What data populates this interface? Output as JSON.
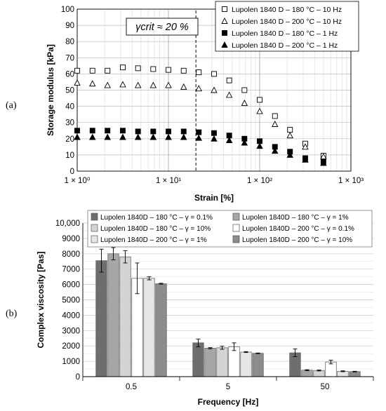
{
  "panel_labels": [
    "(a)",
    "(b)"
  ],
  "chart_data": [
    {
      "type": "scatter",
      "xscale": "log",
      "xlabel": "Strain [%]",
      "ylabel": "Storage modulus [kPa]",
      "xlim": [
        1,
        1000
      ],
      "ylim": [
        0,
        100
      ],
      "yticks": [
        0,
        10,
        20,
        30,
        40,
        50,
        60,
        70,
        80,
        90,
        100
      ],
      "xtick_labels": [
        "1 × 10⁰",
        "1 × 10¹",
        "1 × 10²",
        "1 × 10³"
      ],
      "grid": true,
      "legend": "top-right",
      "annotation": {
        "text": "γcrit ≈ 20 %",
        "x": 20
      },
      "x": [
        1,
        1.47,
        2.15,
        3.16,
        4.64,
        6.81,
        10,
        14.7,
        21.5,
        31.6,
        46.4,
        68.1,
        100,
        147,
        215,
        316,
        500
      ],
      "series": [
        {
          "name": "Lupolen 1840 D – 180 °C – 10 Hz",
          "marker": "square-open",
          "values": [
            62,
            62,
            62,
            64,
            63.5,
            63,
            62.5,
            62,
            61,
            60,
            56,
            50,
            44,
            34,
            25.5,
            17,
            9.5
          ]
        },
        {
          "name": "Lupolen 1840 D – 200 °C – 10 Hz",
          "marker": "triangle-open",
          "values": [
            54.5,
            54,
            53,
            53.5,
            53,
            53,
            53,
            52,
            51,
            50,
            47,
            42,
            37,
            29,
            22,
            15,
            9
          ]
        },
        {
          "name": "Lupolen 1840 D – 180 °C – 1 Hz",
          "marker": "square-filled",
          "values": [
            25,
            25,
            25,
            25,
            24.5,
            24.5,
            24.5,
            24.5,
            24,
            23.5,
            22,
            20,
            18.5,
            15,
            12,
            8,
            6
          ]
        },
        {
          "name": "Lupolen 1840 D – 200 °C – 1 Hz",
          "marker": "triangle-filled",
          "values": [
            21,
            21,
            21,
            21,
            21,
            21,
            21,
            21,
            20.5,
            20,
            19,
            17.5,
            15.5,
            12.5,
            10,
            7,
            5
          ]
        }
      ]
    },
    {
      "type": "bar",
      "xlabel": "Frequency [Hz]",
      "ylabel": "Complex viscosity  [Pas]",
      "categories": [
        "0.5",
        "5",
        "50"
      ],
      "ylim": [
        0,
        10000
      ],
      "yticks": [
        0,
        1000,
        2000,
        3000,
        4000,
        5000,
        6000,
        7000,
        8000,
        9000,
        10000
      ],
      "ytick_labels": [
        "0",
        "1000",
        "2000",
        "3000",
        "4000",
        "5000",
        "6000",
        "7000",
        "8000",
        "9000",
        "10,000"
      ],
      "grid": true,
      "legend": "top",
      "series": [
        {
          "name": "Lupolen 1840D – 180 °C – γ = 0.1%",
          "color": "#6e6e6e",
          "values": [
            7550,
            2200,
            1550
          ],
          "errors": [
            750,
            250,
            250
          ]
        },
        {
          "name": "Lupolen 1840D – 180 °C – γ = 1%",
          "color": "#a6a6a6",
          "values": [
            8000,
            1850,
            420
          ],
          "errors": [
            400,
            40,
            30
          ]
        },
        {
          "name": "Lupolen 1840D – 180 °C – γ = 10%",
          "color": "#d4d4d4",
          "values": [
            7800,
            1880,
            400
          ],
          "errors": [
            400,
            100,
            30
          ]
        },
        {
          "name": "Lupolen 1840D – 200 °C – γ = 0.1%",
          "color": "#ffffff",
          "values": [
            6400,
            1950,
            950
          ],
          "errors": [
            1000,
            250,
            120
          ]
        },
        {
          "name": "Lupolen 1840D – 200 °C – γ = 1%",
          "color": "#e6e6e6",
          "values": [
            6400,
            1600,
            350
          ],
          "errors": [
            100,
            30,
            30
          ]
        },
        {
          "name": "Lupolen 1840D – 200 °C – γ = 10%",
          "color": "#8c8c8c",
          "values": [
            6050,
            1520,
            330
          ],
          "errors": [
            30,
            20,
            20
          ]
        }
      ]
    }
  ]
}
